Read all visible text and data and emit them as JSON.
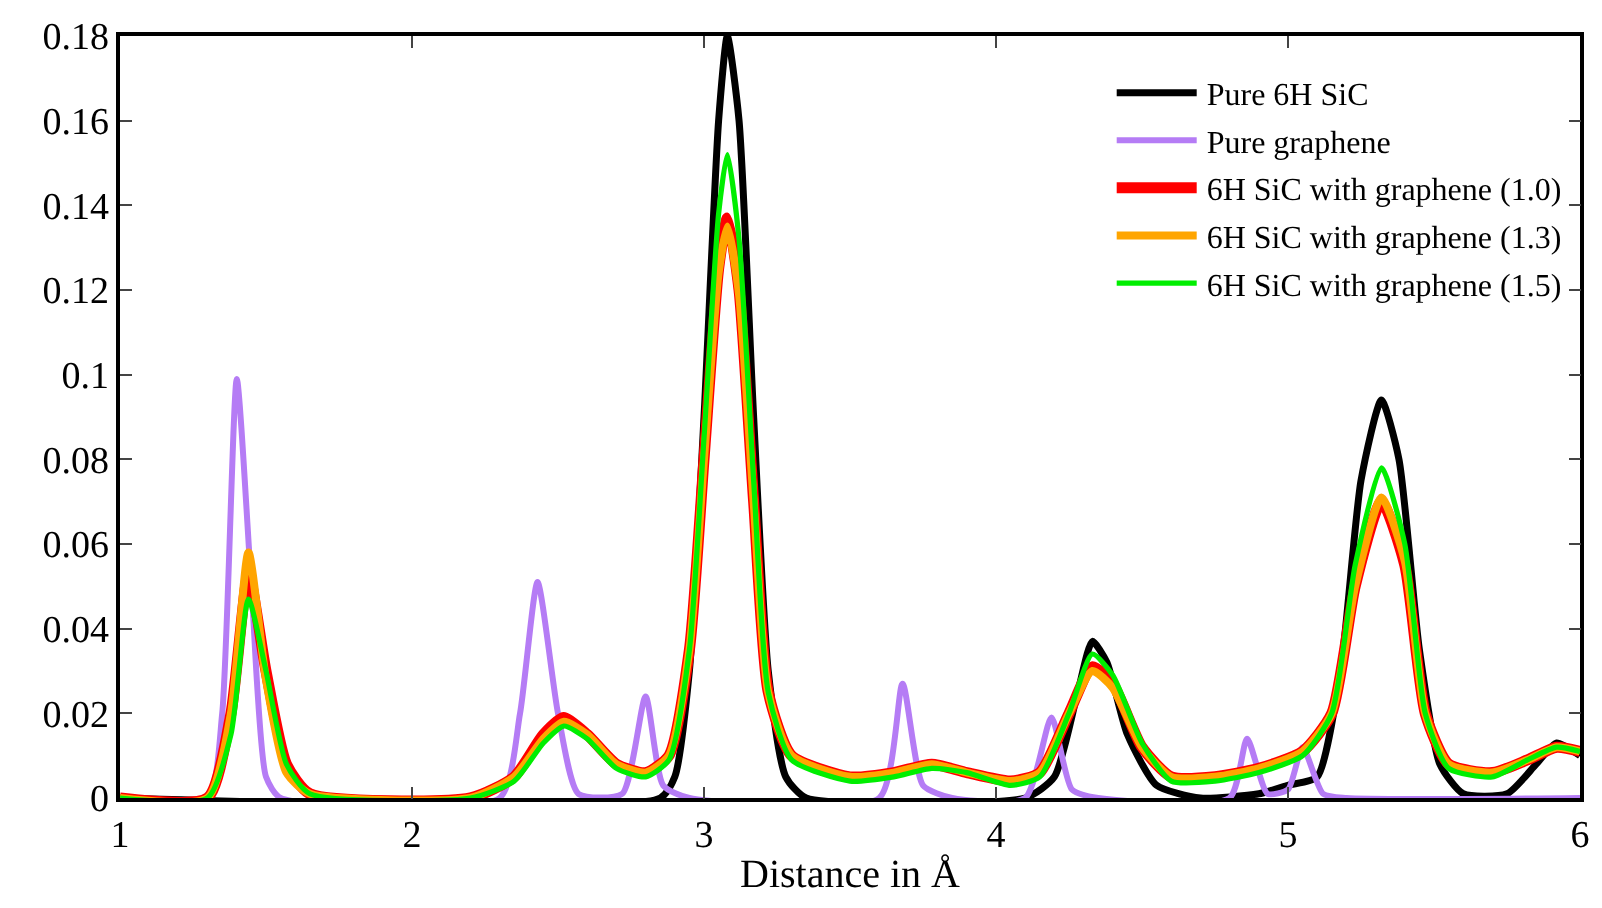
{
  "chart_data": {
    "type": "line",
    "xlabel": "Distance in Å",
    "xlim": [
      1,
      6
    ],
    "xticks": [
      1,
      2,
      3,
      4,
      5,
      6
    ],
    "ylim": [
      0,
      0.18
    ],
    "yticks": [
      0,
      0.02,
      0.04,
      0.06,
      0.08,
      0.1,
      0.12,
      0.14,
      0.16,
      0.18
    ],
    "legend": "top right",
    "marker": "none",
    "line_style": "solid",
    "series": [
      {
        "name": "Pure 6H SiC",
        "color": "#000000",
        "x": [
          1,
          2.85,
          2.9,
          2.95,
          3.0,
          3.05,
          3.08,
          3.12,
          3.17,
          3.22,
          3.28,
          3.35,
          4.1,
          4.2,
          4.28,
          4.33,
          4.38,
          4.45,
          4.55,
          4.7,
          4.9,
          5.0,
          5.1,
          5.18,
          5.25,
          5.32,
          5.38,
          5.45,
          5.52,
          5.6,
          5.75,
          5.85,
          5.92,
          6.0
        ],
        "values": [
          0,
          0,
          0.005,
          0.03,
          0.09,
          0.16,
          0.18,
          0.16,
          0.09,
          0.03,
          0.005,
          0,
          0,
          0.005,
          0.025,
          0.037,
          0.032,
          0.015,
          0.003,
          0,
          0.001,
          0.003,
          0.005,
          0.03,
          0.075,
          0.094,
          0.08,
          0.035,
          0.008,
          0.001,
          0.001,
          0.008,
          0.013,
          0.01
        ]
      },
      {
        "name": "Pure graphene",
        "color": "#b57cf5",
        "x": [
          1,
          1.3,
          1.35,
          1.4,
          1.45,
          1.5,
          1.55,
          2.3,
          2.37,
          2.43,
          2.5,
          2.57,
          2.72,
          2.8,
          2.86,
          2.95,
          3.6,
          3.68,
          3.75,
          3.85,
          4.1,
          4.19,
          4.26,
          4.35,
          4.8,
          4.86,
          4.93,
          5.0,
          5.05,
          5.12,
          5.2,
          6.0
        ],
        "values": [
          0,
          0,
          0.02,
          0.099,
          0.05,
          0.005,
          0,
          0,
          0.02,
          0.051,
          0.02,
          0.001,
          0.001,
          0.024,
          0.003,
          0,
          0,
          0.027,
          0.003,
          0,
          0,
          0.019,
          0.002,
          0,
          0,
          0.014,
          0.001,
          0.002,
          0.012,
          0.001,
          0,
          0
        ]
      },
      {
        "name": "6H SiC with graphene (1.0)",
        "color": "#ff0000",
        "x": [
          1,
          1.3,
          1.38,
          1.44,
          1.5,
          1.57,
          1.65,
          2.2,
          2.35,
          2.45,
          2.52,
          2.6,
          2.7,
          2.8,
          2.88,
          2.95,
          3.0,
          3.05,
          3.08,
          3.12,
          3.17,
          3.22,
          3.3,
          3.5,
          3.65,
          3.78,
          3.9,
          4.05,
          4.15,
          4.25,
          4.33,
          4.4,
          4.5,
          4.6,
          4.75,
          4.9,
          5.05,
          5.15,
          5.23,
          5.32,
          5.4,
          5.47,
          5.55,
          5.7,
          5.82,
          5.92,
          6.0
        ],
        "values": [
          0,
          0,
          0.02,
          0.053,
          0.03,
          0.008,
          0.001,
          0,
          0.005,
          0.015,
          0.019,
          0.015,
          0.008,
          0.006,
          0.01,
          0.035,
          0.08,
          0.125,
          0.137,
          0.12,
          0.07,
          0.025,
          0.01,
          0.005,
          0.006,
          0.008,
          0.006,
          0.004,
          0.006,
          0.02,
          0.031,
          0.027,
          0.012,
          0.005,
          0.005,
          0.007,
          0.011,
          0.02,
          0.05,
          0.07,
          0.055,
          0.02,
          0.008,
          0.006,
          0.009,
          0.012,
          0.011
        ]
      },
      {
        "name": "6H SiC with graphene (1.3)",
        "color": "#ffa500",
        "x": [
          1,
          1.3,
          1.38,
          1.44,
          1.5,
          1.57,
          1.65,
          2.2,
          2.35,
          2.45,
          2.52,
          2.6,
          2.7,
          2.8,
          2.88,
          2.95,
          3.0,
          3.05,
          3.08,
          3.12,
          3.17,
          3.22,
          3.3,
          3.5,
          3.65,
          3.78,
          3.9,
          4.05,
          4.15,
          4.25,
          4.33,
          4.4,
          4.5,
          4.6,
          4.75,
          4.9,
          5.05,
          5.15,
          5.23,
          5.32,
          5.4,
          5.47,
          5.55,
          5.7,
          5.82,
          5.92,
          6.0
        ],
        "values": [
          0,
          0,
          0.02,
          0.058,
          0.028,
          0.006,
          0.001,
          0,
          0.005,
          0.014,
          0.018,
          0.015,
          0.008,
          0.006,
          0.01,
          0.035,
          0.08,
          0.124,
          0.135,
          0.119,
          0.07,
          0.025,
          0.01,
          0.005,
          0.006,
          0.008,
          0.006,
          0.004,
          0.006,
          0.02,
          0.03,
          0.026,
          0.012,
          0.005,
          0.005,
          0.007,
          0.011,
          0.02,
          0.05,
          0.071,
          0.056,
          0.02,
          0.008,
          0.006,
          0.009,
          0.012,
          0.011
        ]
      },
      {
        "name": "6H SiC with graphene (1.5)",
        "color": "#00ee00",
        "x": [
          1,
          1.3,
          1.38,
          1.44,
          1.5,
          1.57,
          1.65,
          2.2,
          2.35,
          2.45,
          2.52,
          2.6,
          2.7,
          2.8,
          2.88,
          2.95,
          3.0,
          3.05,
          3.08,
          3.12,
          3.17,
          3.22,
          3.3,
          3.5,
          3.65,
          3.78,
          3.9,
          4.05,
          4.15,
          4.25,
          4.33,
          4.4,
          4.5,
          4.6,
          4.75,
          4.9,
          5.05,
          5.15,
          5.23,
          5.32,
          5.4,
          5.47,
          5.55,
          5.7,
          5.82,
          5.92,
          6.0
        ],
        "values": [
          0,
          0,
          0.015,
          0.047,
          0.03,
          0.008,
          0.001,
          0,
          0.004,
          0.013,
          0.017,
          0.014,
          0.007,
          0.005,
          0.009,
          0.035,
          0.085,
          0.138,
          0.152,
          0.132,
          0.075,
          0.025,
          0.009,
          0.004,
          0.005,
          0.007,
          0.006,
          0.003,
          0.005,
          0.02,
          0.034,
          0.029,
          0.013,
          0.004,
          0.004,
          0.006,
          0.01,
          0.02,
          0.055,
          0.078,
          0.06,
          0.02,
          0.007,
          0.005,
          0.009,
          0.012,
          0.011
        ]
      }
    ]
  }
}
